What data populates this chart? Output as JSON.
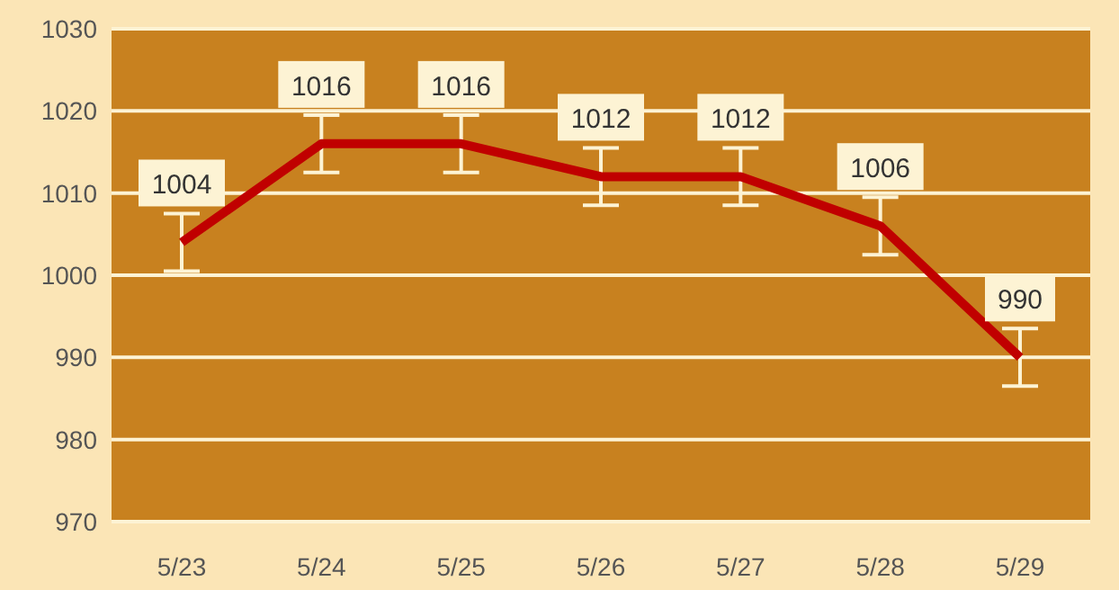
{
  "chart_data": {
    "type": "line",
    "categories": [
      "5/23",
      "5/24",
      "5/25",
      "5/26",
      "5/27",
      "5/28",
      "5/29"
    ],
    "series": [
      {
        "color": "#c00000",
        "values": [
          1004,
          1016,
          1016,
          1012,
          1012,
          1006,
          990
        ],
        "errors": [
          3.5,
          3.5,
          3.5,
          3.5,
          3.5,
          3.5,
          3.5
        ]
      }
    ],
    "ylim": [
      970,
      1030
    ],
    "yticks": [
      970,
      980,
      990,
      1000,
      1010,
      1020,
      1030
    ],
    "grid": "y",
    "data_labels": true,
    "marker": "none",
    "line_style": "solid",
    "legend": false
  }
}
